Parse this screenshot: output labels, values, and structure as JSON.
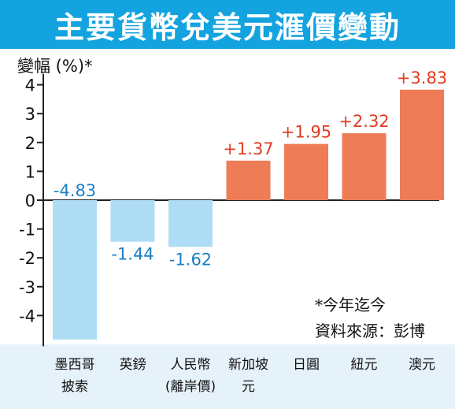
{
  "header": {
    "title": "主要貨幣兌美元滙價變動"
  },
  "footnote": {
    "line1": "*今年迄今",
    "line2": "資料來源：彭博"
  },
  "colors": {
    "title_bg": "#13a3df",
    "negative": "#aedcf5",
    "positive": "#ed7c57",
    "negative_label": "#1b7fc4",
    "positive_label": "#e23b22",
    "category_strip": "#e6f2fa"
  },
  "chart_data": {
    "type": "bar",
    "title": "主要貨幣兌美元滙價變動",
    "ylabel": "變幅 (%)*",
    "xlabel": "",
    "ylim": [
      -4.9,
      4
    ],
    "yticks": [
      "4",
      "3",
      "2",
      "1",
      "0",
      "-1",
      "-2",
      "-3",
      "-4"
    ],
    "ytick_values": [
      4,
      3,
      2,
      1,
      0,
      -1,
      -2,
      -3,
      -4
    ],
    "categories": [
      [
        "墨西哥",
        "披索"
      ],
      [
        "英鎊"
      ],
      [
        "人民幣",
        "(離岸價)"
      ],
      [
        "新加坡",
        "元"
      ],
      [
        "日圓"
      ],
      [
        "紐元"
      ],
      [
        "澳元"
      ]
    ],
    "values": [
      -4.83,
      -1.44,
      -1.62,
      1.37,
      1.95,
      2.32,
      3.83
    ],
    "value_labels": [
      "-4.83",
      "-1.44",
      "-1.62",
      "+1.37",
      "+1.95",
      "+2.32",
      "+3.83"
    ],
    "grid": false,
    "legend": "none"
  }
}
